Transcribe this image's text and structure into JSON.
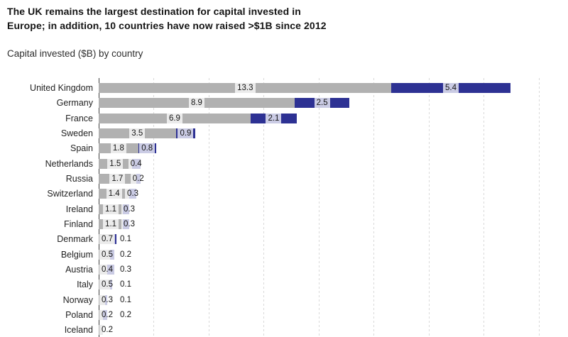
{
  "header": {
    "title_lines": [
      "The UK remains the largest destination for capital invested in",
      "Europe; in addition, 10 countries have now raised >$1B since 2012"
    ],
    "subtitle": "Capital invested ($B) by country"
  },
  "chart_data": {
    "type": "bar",
    "orientation": "horizontal",
    "stacked": true,
    "title": "Capital invested ($B) by country",
    "xlabel": "",
    "ylabel": "",
    "categories": [
      "United Kingdom",
      "Germany",
      "France",
      "Sweden",
      "Spain",
      "Netherlands",
      "Russia",
      "Switzerland",
      "Ireland",
      "Finland",
      "Denmark",
      "Belgium",
      "Austria",
      "Italy",
      "Norway",
      "Poland",
      "Iceland"
    ],
    "series": [
      {
        "name": "series_gray",
        "color": "#b1b1b1",
        "values": [
          13.3,
          8.9,
          6.9,
          3.5,
          1.8,
          1.5,
          1.7,
          1.4,
          1.1,
          1.1,
          0.7,
          0.5,
          0.4,
          0.5,
          0.3,
          0.2,
          0.2
        ]
      },
      {
        "name": "series_blue",
        "color": "#2d3193",
        "values": [
          5.4,
          2.5,
          2.1,
          0.9,
          0.8,
          0.4,
          0.2,
          0.3,
          0.3,
          0.3,
          0.1,
          0.2,
          0.3,
          0.1,
          0.1,
          0.2,
          null
        ]
      }
    ],
    "value_labels": "inside, one decimal, on translucent white boxes",
    "xlim": [
      0,
      20.5
    ],
    "gridline_interval": 2.5,
    "grid": true,
    "legend": "none",
    "axis_tick_labels_shown": false
  },
  "style": {
    "bar_gray": "#b1b1b1",
    "bar_blue": "#2d3193",
    "gridline_color": "#d9d9d9",
    "axis_color": "#3d3d3d",
    "label_box_bg": "rgba(255,255,255,0.75)",
    "text_color": "#141414"
  }
}
